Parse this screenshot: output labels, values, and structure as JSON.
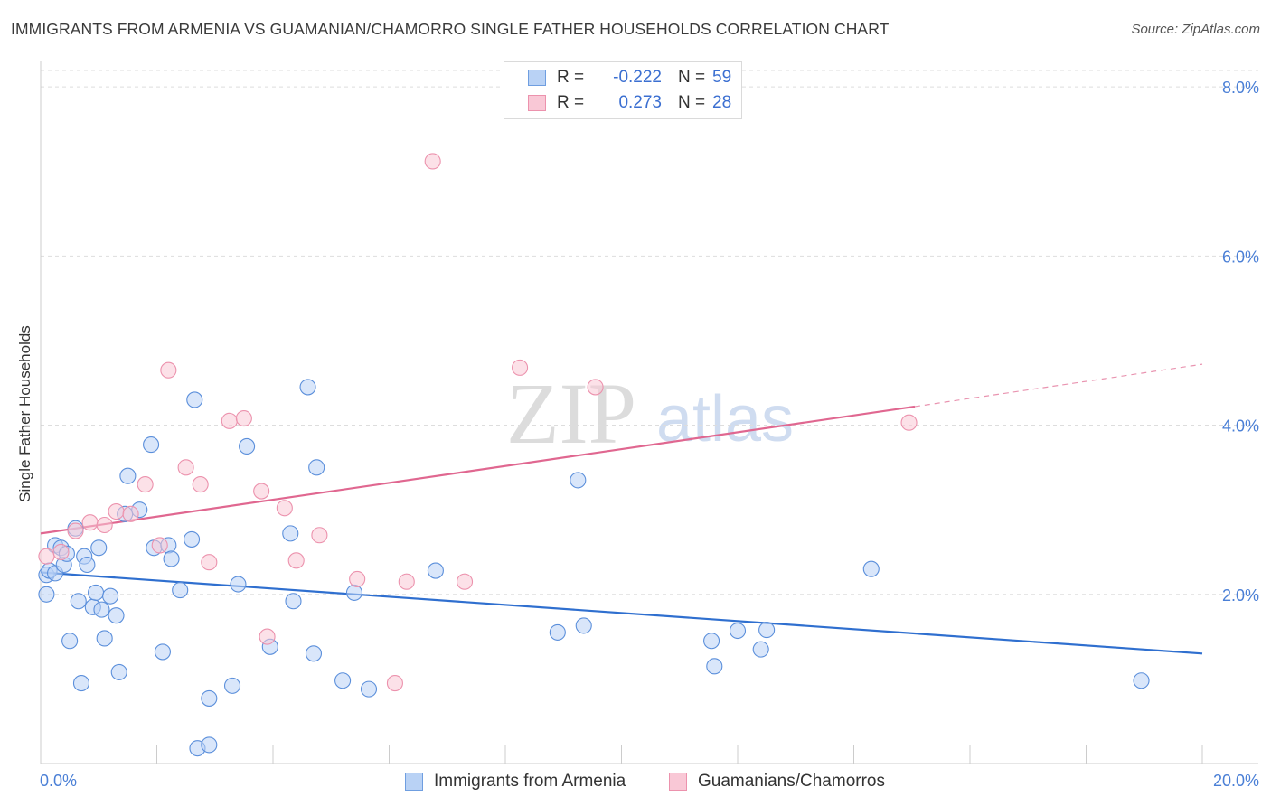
{
  "title": "IMMIGRANTS FROM ARMENIA VS GUAMANIAN/CHAMORRO SINGLE FATHER HOUSEHOLDS CORRELATION CHART",
  "source": "Source: ZipAtlas.com",
  "watermark": {
    "zip": "ZIP",
    "atlas": "atlas"
  },
  "legend": {
    "r_label": "R =",
    "n_label": "N =",
    "series": [
      {
        "r": "-0.222",
        "n": "59",
        "fill": "#b9d2f5",
        "stroke": "#6f9ee0"
      },
      {
        "r": "0.273",
        "n": "28",
        "fill": "#f9c8d6",
        "stroke": "#ec92ad"
      }
    ]
  },
  "chart_data": {
    "type": "scatter",
    "title": "IMMIGRANTS FROM ARMENIA VS GUAMANIAN/CHAMORRO SINGLE FATHER HOUSEHOLDS CORRELATION CHART",
    "xlabel": "",
    "ylabel": "Single Father Households",
    "xlim": [
      0,
      20
    ],
    "ylim": [
      0,
      8.3
    ],
    "x_tick_labels": [
      "0.0%",
      "20.0%"
    ],
    "y_ticks": [
      2,
      4,
      6,
      8
    ],
    "y_tick_labels": [
      "2.0%",
      "4.0%",
      "6.0%",
      "8.0%"
    ],
    "grid": true,
    "series": [
      {
        "name": "Immigrants from Armenia",
        "color": "#5b8fdb",
        "fill": "#b9d2f5",
        "line_color": "#2f6fcf",
        "trend": {
          "x0": 0,
          "y0": 2.26,
          "x1": 20,
          "y1": 1.3
        },
        "points": [
          [
            0.1,
            2.23
          ],
          [
            0.1,
            2.0
          ],
          [
            0.15,
            2.28
          ],
          [
            0.25,
            2.25
          ],
          [
            0.25,
            2.58
          ],
          [
            0.35,
            2.55
          ],
          [
            0.4,
            2.35
          ],
          [
            0.45,
            2.48
          ],
          [
            0.5,
            1.45
          ],
          [
            0.6,
            2.78
          ],
          [
            0.65,
            1.92
          ],
          [
            0.7,
            0.95
          ],
          [
            0.75,
            2.45
          ],
          [
            0.8,
            2.35
          ],
          [
            0.9,
            1.85
          ],
          [
            0.95,
            2.02
          ],
          [
            1.0,
            2.55
          ],
          [
            1.05,
            1.82
          ],
          [
            1.1,
            1.48
          ],
          [
            1.2,
            1.98
          ],
          [
            1.3,
            1.75
          ],
          [
            1.35,
            1.08
          ],
          [
            1.45,
            2.95
          ],
          [
            1.5,
            3.4
          ],
          [
            1.7,
            3.0
          ],
          [
            1.9,
            3.77
          ],
          [
            1.95,
            2.55
          ],
          [
            2.1,
            1.32
          ],
          [
            2.2,
            2.58
          ],
          [
            2.25,
            2.42
          ],
          [
            2.4,
            2.05
          ],
          [
            2.6,
            2.65
          ],
          [
            2.65,
            4.3
          ],
          [
            2.7,
            0.18
          ],
          [
            2.9,
            0.22
          ],
          [
            2.9,
            0.77
          ],
          [
            3.3,
            0.92
          ],
          [
            3.4,
            2.12
          ],
          [
            3.55,
            3.75
          ],
          [
            3.95,
            1.38
          ],
          [
            4.3,
            2.72
          ],
          [
            4.35,
            1.92
          ],
          [
            4.6,
            4.45
          ],
          [
            4.7,
            1.3
          ],
          [
            4.75,
            3.5
          ],
          [
            5.2,
            0.98
          ],
          [
            5.4,
            2.02
          ],
          [
            5.65,
            0.88
          ],
          [
            6.8,
            2.28
          ],
          [
            8.9,
            1.55
          ],
          [
            9.25,
            3.35
          ],
          [
            9.35,
            1.63
          ],
          [
            11.55,
            1.45
          ],
          [
            11.6,
            1.15
          ],
          [
            12.0,
            1.57
          ],
          [
            12.4,
            1.35
          ],
          [
            12.5,
            1.58
          ],
          [
            14.3,
            2.3
          ],
          [
            18.95,
            0.98
          ]
        ]
      },
      {
        "name": "Guamanians/Chamorros",
        "color": "#ec92ad",
        "fill": "#f9c8d6",
        "line_color": "#e06790",
        "trend": {
          "x0": 0,
          "y0": 2.72,
          "x1": 15.05,
          "y1": 4.22
        },
        "trend_dashed": {
          "x0": 15.05,
          "y0": 4.22,
          "x1": 20,
          "y1": 4.72
        },
        "points": [
          [
            0.1,
            2.45
          ],
          [
            0.35,
            2.5
          ],
          [
            0.6,
            2.75
          ],
          [
            0.85,
            2.85
          ],
          [
            1.1,
            2.82
          ],
          [
            1.3,
            2.98
          ],
          [
            1.55,
            2.95
          ],
          [
            1.8,
            3.3
          ],
          [
            2.05,
            2.58
          ],
          [
            2.2,
            4.65
          ],
          [
            2.5,
            3.5
          ],
          [
            2.75,
            3.3
          ],
          [
            2.9,
            2.38
          ],
          [
            3.25,
            4.05
          ],
          [
            3.5,
            4.08
          ],
          [
            3.8,
            3.22
          ],
          [
            3.9,
            1.5
          ],
          [
            4.2,
            3.02
          ],
          [
            4.4,
            2.4
          ],
          [
            4.8,
            2.7
          ],
          [
            5.45,
            2.18
          ],
          [
            6.1,
            0.95
          ],
          [
            6.3,
            2.15
          ],
          [
            6.75,
            7.12
          ],
          [
            7.3,
            2.15
          ],
          [
            8.25,
            4.68
          ],
          [
            9.55,
            4.45
          ],
          [
            14.95,
            4.03
          ]
        ]
      }
    ]
  }
}
